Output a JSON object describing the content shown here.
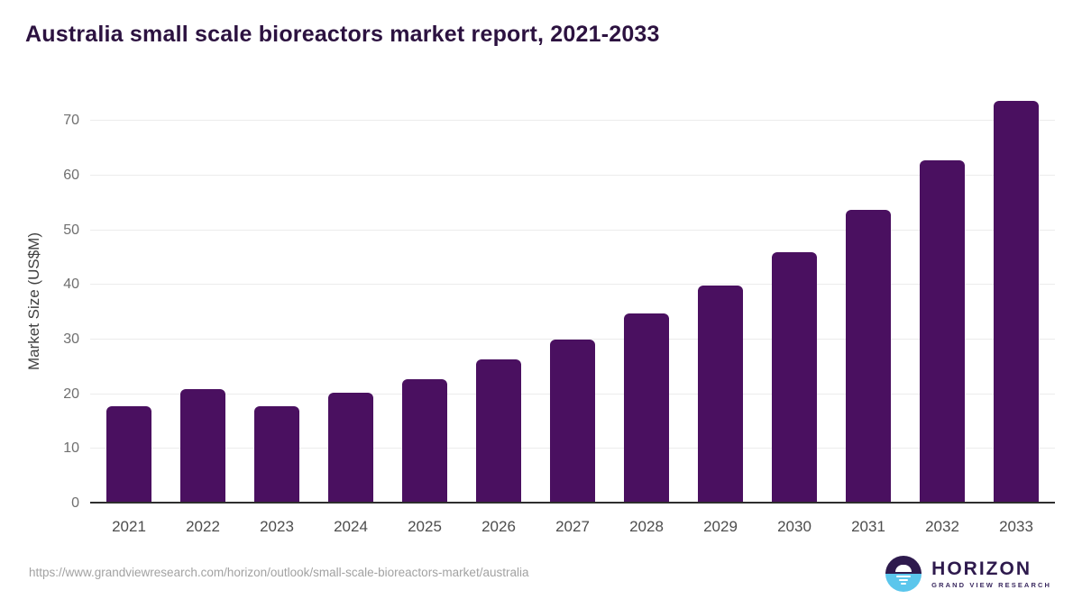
{
  "header": {
    "title": "Australia small scale bioreactors market report, 2021-2033"
  },
  "chart_data": {
    "type": "bar",
    "title": "Australia small scale bioreactors market report, 2021-2033",
    "categories": [
      "2021",
      "2022",
      "2023",
      "2024",
      "2025",
      "2026",
      "2027",
      "2028",
      "2029",
      "2030",
      "2031",
      "2032",
      "2033"
    ],
    "values": [
      17.8,
      20.9,
      17.8,
      20.2,
      22.8,
      26.3,
      30.0,
      34.7,
      39.8,
      46.0,
      53.7,
      62.8,
      73.6
    ],
    "xlabel": "",
    "ylabel": "Market Size (US$M)",
    "ylim": [
      0,
      75
    ],
    "yticks": [
      0,
      10,
      20,
      30,
      40,
      50,
      60,
      70
    ],
    "grid": true,
    "legend": false,
    "bar_color": "#4a1060"
  },
  "footer": {
    "source_url": "https://www.grandviewresearch.com/horizon/outlook/small-scale-bioreactors-market/australia",
    "logo": {
      "brand": "HORIZON",
      "subtitle": "GRAND VIEW RESEARCH"
    }
  },
  "colors": {
    "bar": "#4a1060",
    "title_text": "#2c1240",
    "axis_line": "#2e2e2e",
    "gridline": "#ececec",
    "y_tick_label": "#6f6f6f",
    "x_tick_label": "#4d4d4d",
    "axis_title": "#404040",
    "source_url": "#a2a2a2",
    "logo_purple": "#2e1a4d",
    "logo_blue": "#5bc6ec"
  }
}
